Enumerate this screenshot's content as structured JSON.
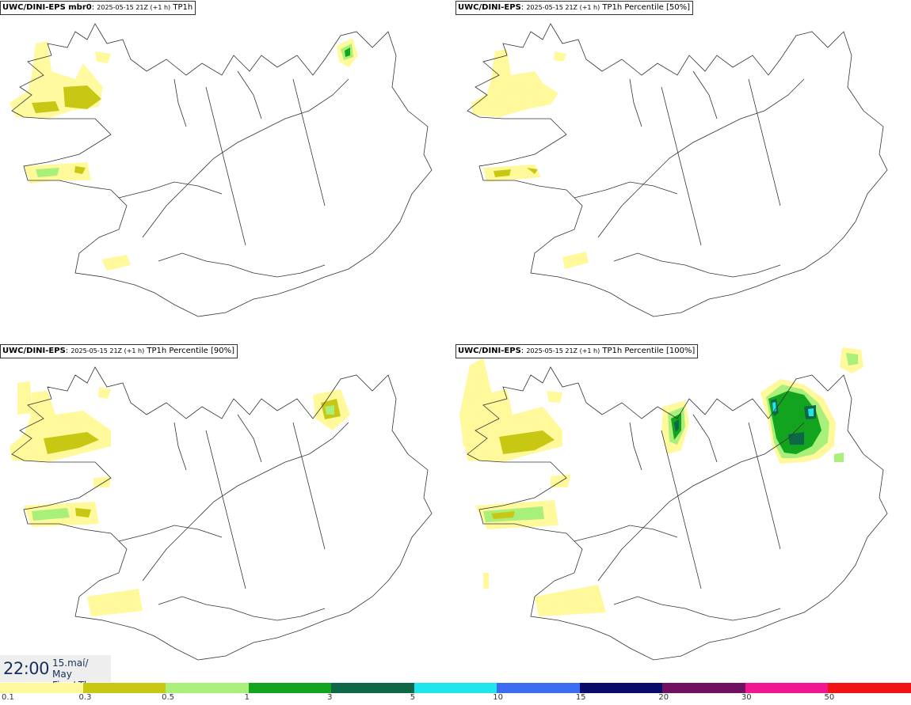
{
  "panels": [
    {
      "model": "UWC/DINI-EPS mbr0",
      "run": "2025-05-15 21Z (+1 h)",
      "param": "TP1h"
    },
    {
      "model": "UWC/DINI-EPS",
      "run": "2025-05-15 21Z (+1 h)",
      "param": "TP1h Percentile [50%]"
    },
    {
      "model": "UWC/DINI-EPS",
      "run": "2025-05-15 21Z (+1 h)",
      "param": "TP1h Percentile [90%]"
    },
    {
      "model": "UWC/DINI-EPS",
      "run": "2025-05-15 21Z (+1 h)",
      "param": "TP1h Percentile [100%]"
    }
  ],
  "valid_time": {
    "time": "22:00",
    "date_line1": "15.maí/ May",
    "date_line2": "Fim./ Thu"
  },
  "legend": {
    "labels": [
      "0.1",
      "0.3",
      "0.5",
      "1",
      "3",
      "5",
      "10",
      "15",
      "20",
      "30",
      "50"
    ],
    "colors": [
      "#fff99b",
      "#c8c814",
      "#a8f07a",
      "#12a41e",
      "#0e6848",
      "#1ee6ec",
      "#3c6cf0",
      "#0a0a6a",
      "#701060",
      "#f01890",
      "#f01414"
    ]
  }
}
